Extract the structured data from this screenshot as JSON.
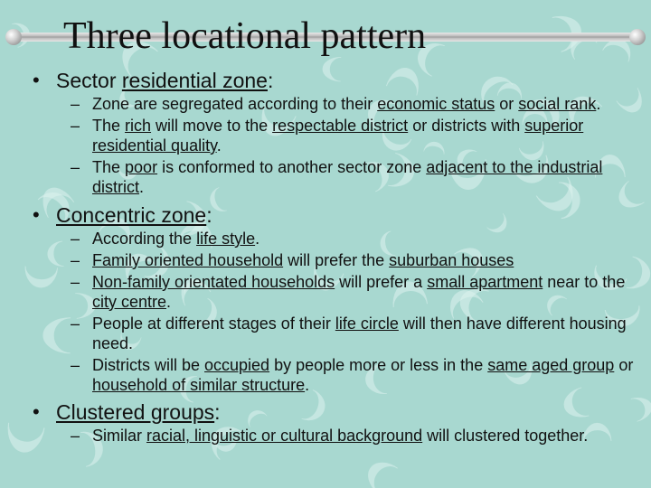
{
  "colors": {
    "background": "#a8d8d0",
    "boomerang": "rgba(220,242,238,0.55)",
    "text": "#111111",
    "bar_gradient": [
      "#e8e8e8",
      "#bcbcbc",
      "#9a9a9a"
    ]
  },
  "title": {
    "text": "Three locational pattern",
    "font_family": "Times New Roman",
    "font_size_pt": 42
  },
  "bullets": [
    {
      "label_prefix": "Sector ",
      "label_underlined": "residential zone",
      "label_suffix": ": ",
      "children": [
        {
          "prefix": "Zone are segregated according to their ",
          "u1": "economic status",
          "mid1": " or ",
          "u2": "social rank",
          "suffix": "."
        },
        {
          "prefix": "The ",
          "u1": "rich",
          "mid1": " will move to the ",
          "u2": "respectable district",
          "mid2": " or districts with ",
          "u3": "superior residential quality",
          "suffix": "."
        },
        {
          "prefix": "The ",
          "u1": "poor",
          "mid1": " is conformed to another sector zone ",
          "u2": "adjacent to the industrial district",
          "suffix": "."
        }
      ]
    },
    {
      "label_prefix": "",
      "label_underlined": "Concentric zone",
      "label_suffix": ":",
      "children": [
        {
          "prefix": "According the ",
          "u1": "life style",
          "suffix": "."
        },
        {
          "u1": "Family oriented household",
          "mid1": " will prefer the ",
          "u2": "suburban houses",
          "suffix": ""
        },
        {
          "u1": "Non-family orientated households",
          "mid1": " will prefer a ",
          "u2": "small apartment",
          "mid2": " near to the ",
          "u3": "city centre",
          "suffix": "."
        },
        {
          "prefix": "People at different stages of their ",
          "u1": "life circle",
          "mid1": " will then have different housing need.",
          "suffix": ""
        },
        {
          "prefix": "Districts will be ",
          "u1": "occupied",
          "mid1": " by people more or less in the ",
          "u2": "same aged group",
          "mid2": " or ",
          "u3": "household of similar structure",
          "suffix": "."
        }
      ]
    },
    {
      "label_prefix": "",
      "label_underlined": "Clustered groups",
      "label_suffix": ":",
      "children": [
        {
          "prefix": "Similar ",
          "u1": "racial, linguistic or cultural background",
          "mid1": " will clustered together.",
          "suffix": ""
        }
      ]
    }
  ],
  "boomerang_pattern": {
    "glyph": "❨",
    "count": 70,
    "font_size": 34
  }
}
